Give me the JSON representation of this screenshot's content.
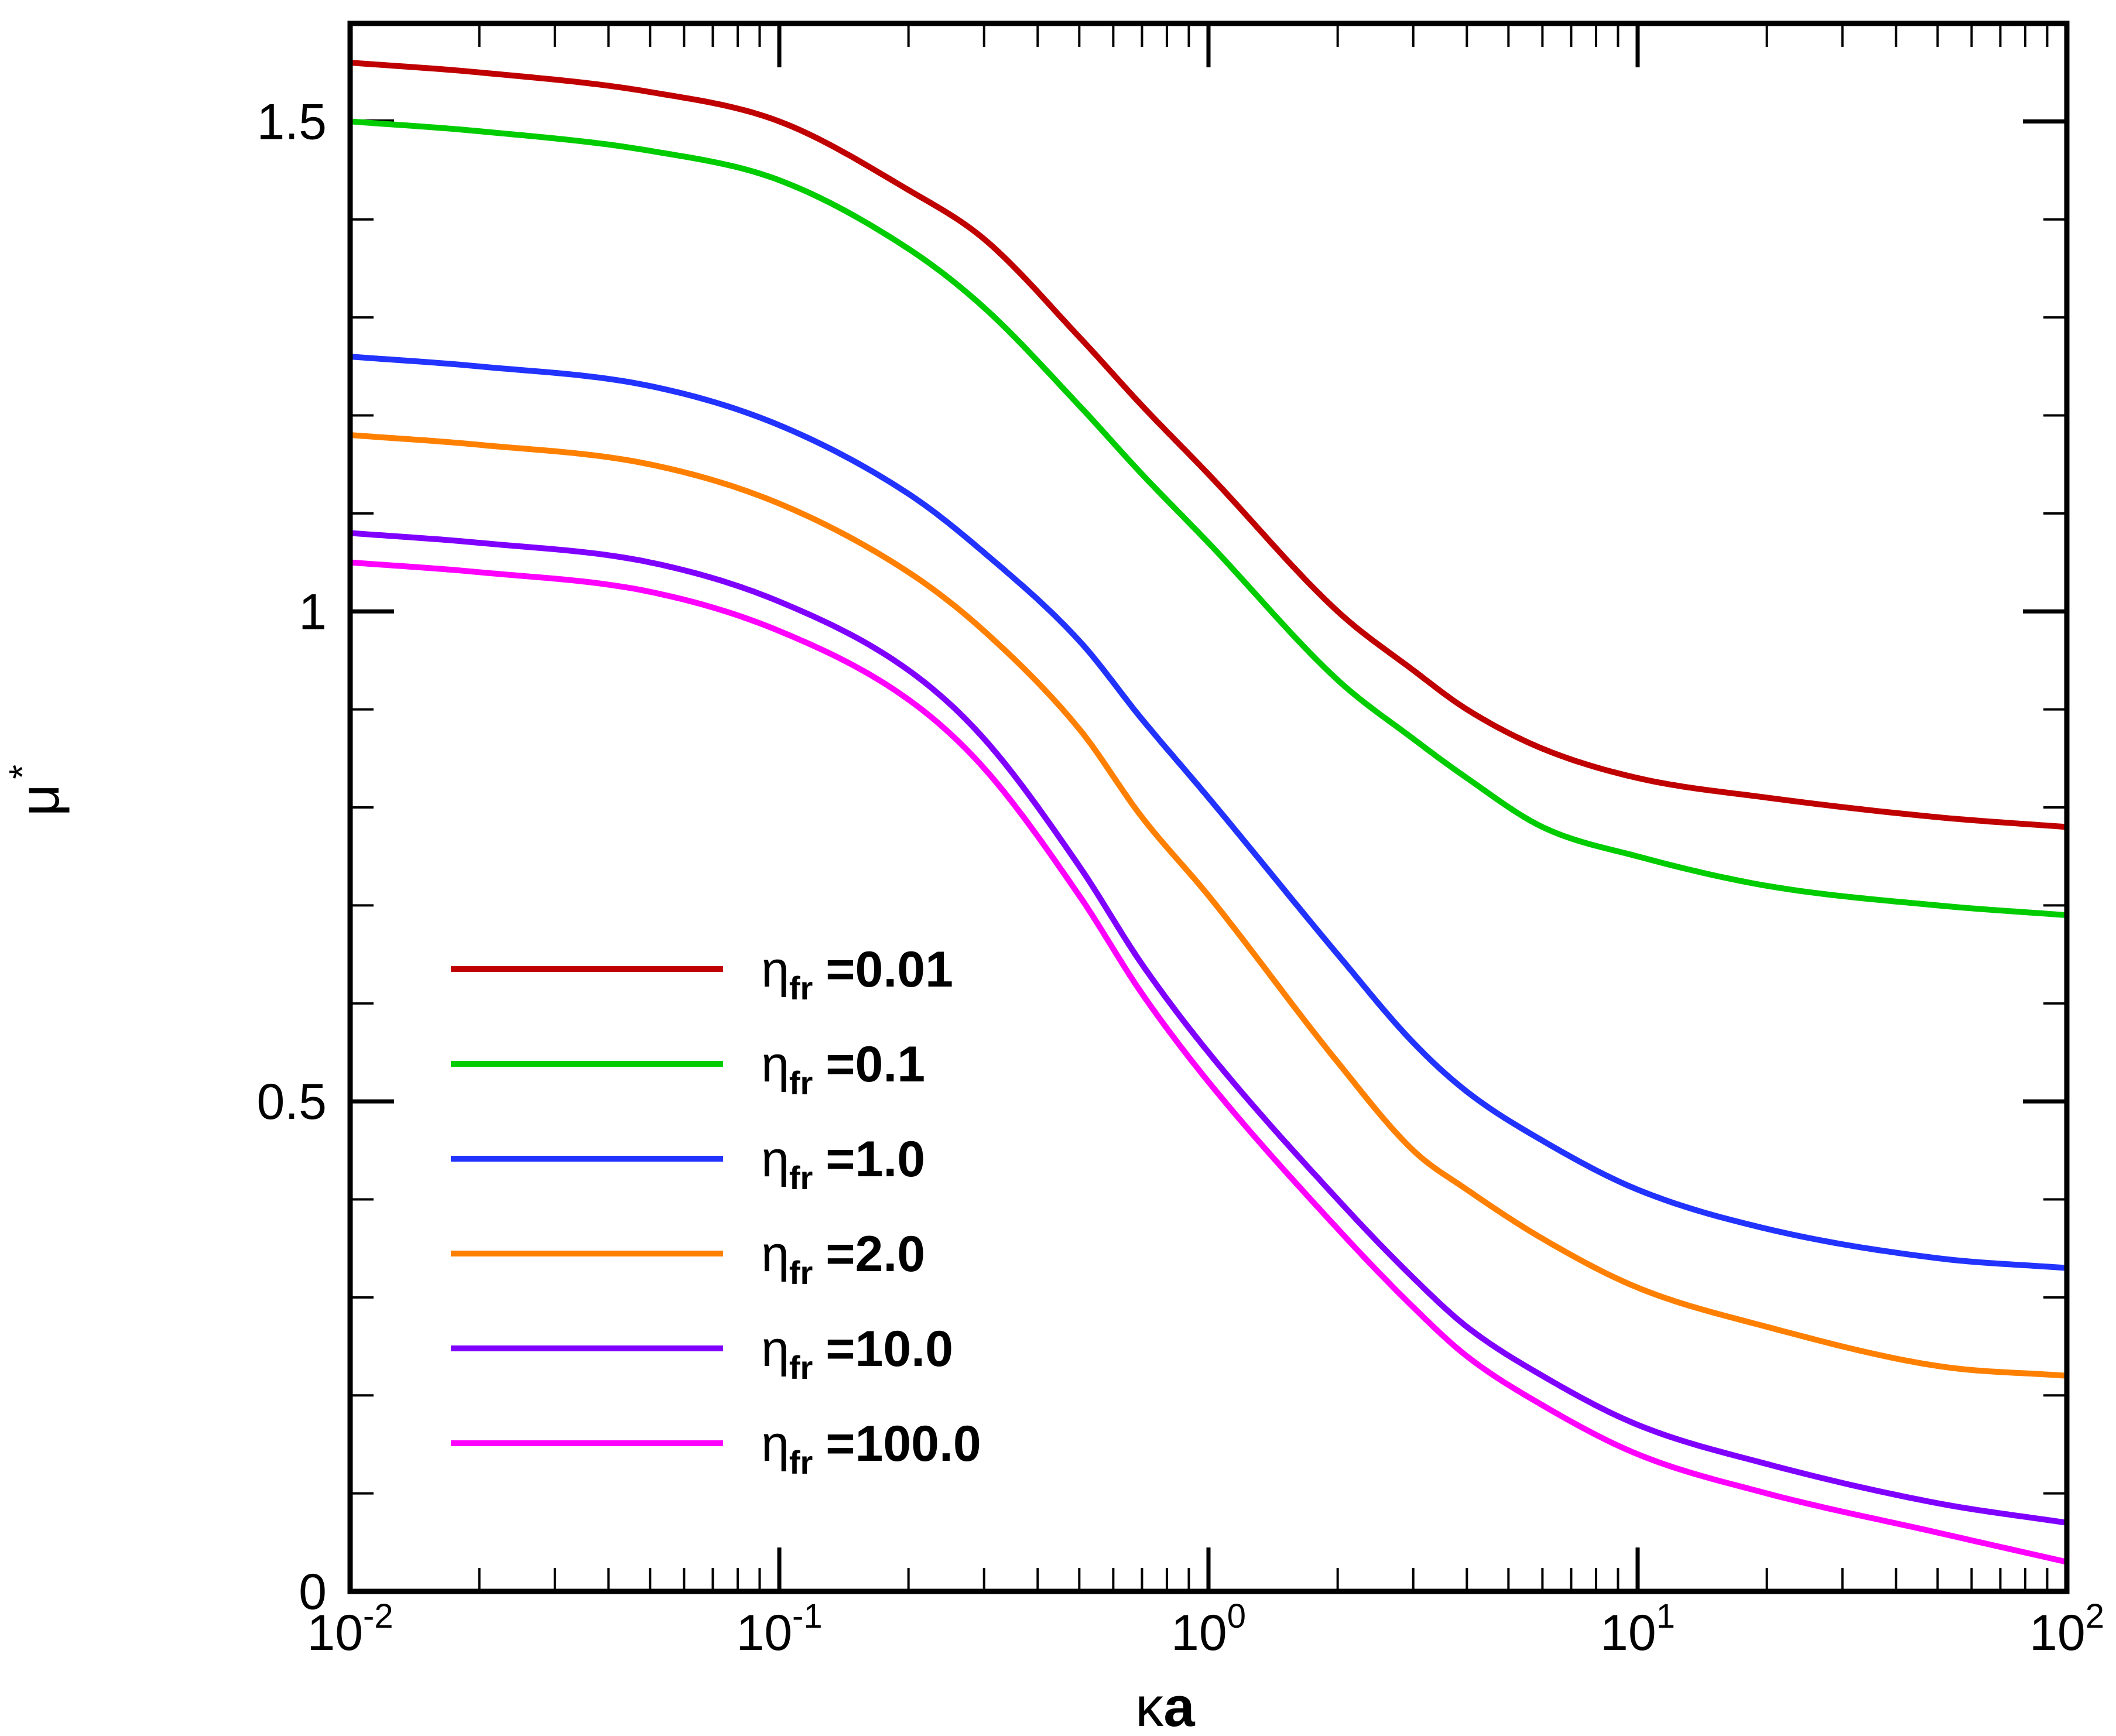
{
  "chart_data": {
    "type": "line",
    "title": "",
    "xscale": "log",
    "xlim": [
      0.01,
      100
    ],
    "ylim": [
      0,
      1.6
    ],
    "xlabel": {
      "symbol": "κ",
      "text": "a"
    },
    "ylabel": {
      "symbol": "μ",
      "superscript": "*"
    },
    "x_ticks": [
      {
        "base": "10",
        "exp": "-2"
      },
      {
        "base": "10",
        "exp": "-1"
      },
      {
        "base": "10",
        "exp": "0"
      },
      {
        "base": "10",
        "exp": "1"
      },
      {
        "base": "10",
        "exp": "2"
      }
    ],
    "y_ticks": [
      {
        "value": 0,
        "label": "0"
      },
      {
        "value": 0.5,
        "label": "0.5"
      },
      {
        "value": 1,
        "label": "1"
      },
      {
        "value": 1.5,
        "label": "1.5"
      }
    ],
    "legend_position": "lower-left",
    "x": [
      0.01,
      0.02,
      0.05,
      0.1,
      0.2,
      0.3,
      0.5,
      0.7,
      1,
      2,
      3,
      4,
      6,
      10,
      20,
      50,
      100
    ],
    "series": [
      {
        "name": "0.01",
        "label_prefix": "η",
        "label_sub": "fr",
        "label_value": "=0.01",
        "color": "#c00000",
        "values": [
          1.56,
          1.55,
          1.53,
          1.5,
          1.43,
          1.38,
          1.28,
          1.21,
          1.14,
          1.0,
          0.94,
          0.9,
          0.86,
          0.83,
          0.81,
          0.79,
          0.78
        ]
      },
      {
        "name": "0.1",
        "label_prefix": "η",
        "label_sub": "fr",
        "label_value": "=0.1",
        "color": "#00cc00",
        "values": [
          1.5,
          1.49,
          1.47,
          1.44,
          1.37,
          1.31,
          1.21,
          1.14,
          1.07,
          0.93,
          0.87,
          0.83,
          0.78,
          0.75,
          0.72,
          0.7,
          0.69
        ]
      },
      {
        "name": "1.0",
        "label_prefix": "η",
        "label_sub": "fr",
        "label_value": "=1.0",
        "color": "#2233ff",
        "values": [
          1.26,
          1.25,
          1.23,
          1.19,
          1.12,
          1.06,
          0.97,
          0.89,
          0.81,
          0.65,
          0.56,
          0.51,
          0.46,
          0.41,
          0.37,
          0.34,
          0.33
        ]
      },
      {
        "name": "2.0",
        "label_prefix": "η",
        "label_sub": "fr",
        "label_value": "=2.0",
        "color": "#ff8000",
        "values": [
          1.18,
          1.17,
          1.15,
          1.11,
          1.04,
          0.98,
          0.88,
          0.79,
          0.71,
          0.54,
          0.45,
          0.41,
          0.36,
          0.31,
          0.27,
          0.23,
          0.22
        ]
      },
      {
        "name": "10.0",
        "label_prefix": "η",
        "label_sub": "fr",
        "label_value": "=10.0",
        "color": "#8000ff",
        "values": [
          1.08,
          1.07,
          1.05,
          1.01,
          0.94,
          0.87,
          0.74,
          0.64,
          0.55,
          0.4,
          0.32,
          0.27,
          0.22,
          0.17,
          0.13,
          0.09,
          0.07
        ]
      },
      {
        "name": "100.0",
        "label_prefix": "η",
        "label_sub": "fr",
        "label_value": "=100.0",
        "color": "#ff00ff",
        "values": [
          1.05,
          1.04,
          1.02,
          0.98,
          0.91,
          0.84,
          0.71,
          0.61,
          0.52,
          0.37,
          0.29,
          0.24,
          0.19,
          0.14,
          0.1,
          0.06,
          0.03
        ]
      }
    ]
  }
}
